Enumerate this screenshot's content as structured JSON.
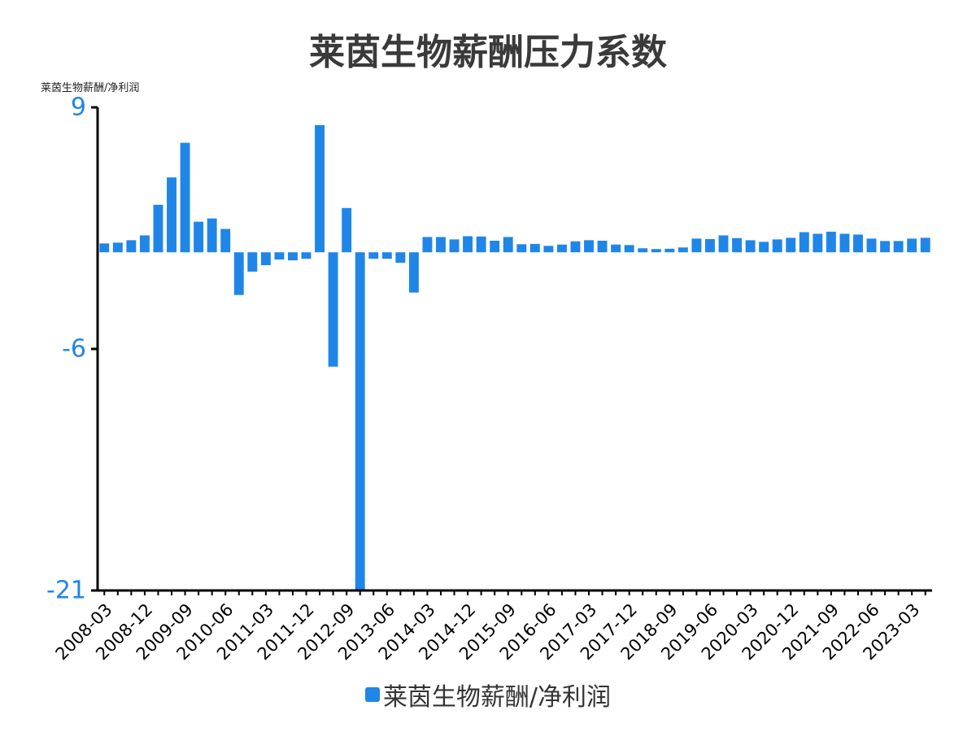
{
  "colors": {
    "bar": "#1f86e8",
    "axis": "#000000",
    "tick_label": "#1f86e8",
    "title": "#3a3a3a"
  },
  "chart_data": {
    "type": "bar",
    "title": "莱茵生物薪酬压力系数",
    "ylabel": "莱茵生物薪酬/净利润",
    "ylim": [
      -21,
      9
    ],
    "yticks": [
      9,
      -6,
      -21
    ],
    "grid": false,
    "legend_position": "bottom-center",
    "x_tick_labels": [
      "2008-03",
      "2008-12",
      "2009-09",
      "2010-06",
      "2011-03",
      "2011-12",
      "2012-09",
      "2013-06",
      "2014-03",
      "2014-12",
      "2015-09",
      "2016-06",
      "2017-03",
      "2017-12",
      "2018-09",
      "2019-06",
      "2020-03",
      "2020-12",
      "2021-09",
      "2022-06",
      "2023-03"
    ],
    "categories": [
      "2008-03",
      "2008-06",
      "2008-09",
      "2008-12",
      "2009-03",
      "2009-06",
      "2009-09",
      "2009-12",
      "2010-03",
      "2010-06",
      "2010-09",
      "2010-12",
      "2011-03",
      "2011-06",
      "2011-09",
      "2011-12",
      "2012-03",
      "2012-06",
      "2012-09",
      "2012-12",
      "2013-03",
      "2013-06",
      "2013-09",
      "2013-12",
      "2014-03",
      "2014-06",
      "2014-09",
      "2014-12",
      "2015-03",
      "2015-06",
      "2015-09",
      "2015-12",
      "2016-03",
      "2016-06",
      "2016-09",
      "2016-12",
      "2017-03",
      "2017-06",
      "2017-09",
      "2017-12",
      "2018-03",
      "2018-06",
      "2018-09",
      "2018-12",
      "2019-03",
      "2019-06",
      "2019-09",
      "2019-12",
      "2020-03",
      "2020-06",
      "2020-09",
      "2020-12",
      "2021-03",
      "2021-06",
      "2021-09",
      "2021-12",
      "2022-03",
      "2022-06",
      "2022-09",
      "2022-12",
      "2023-03",
      "2023-06"
    ],
    "series": [
      {
        "name": "莱茵生物薪酬/净利润",
        "values": [
          0.55,
          0.6,
          0.75,
          1.05,
          2.95,
          4.65,
          6.8,
          1.9,
          2.1,
          1.45,
          -2.65,
          -1.2,
          -0.8,
          -0.45,
          -0.5,
          -0.4,
          7.9,
          -7.1,
          2.75,
          -21.0,
          -0.4,
          -0.4,
          -0.65,
          -2.5,
          0.95,
          0.95,
          0.8,
          1.0,
          0.98,
          0.72,
          0.95,
          0.5,
          0.52,
          0.4,
          0.48,
          0.68,
          0.75,
          0.72,
          0.48,
          0.45,
          0.25,
          0.2,
          0.22,
          0.3,
          0.85,
          0.82,
          1.05,
          0.88,
          0.75,
          0.65,
          0.8,
          0.9,
          1.25,
          1.15,
          1.28,
          1.15,
          1.1,
          0.85,
          0.7,
          0.7,
          0.85,
          0.9
        ]
      }
    ]
  }
}
